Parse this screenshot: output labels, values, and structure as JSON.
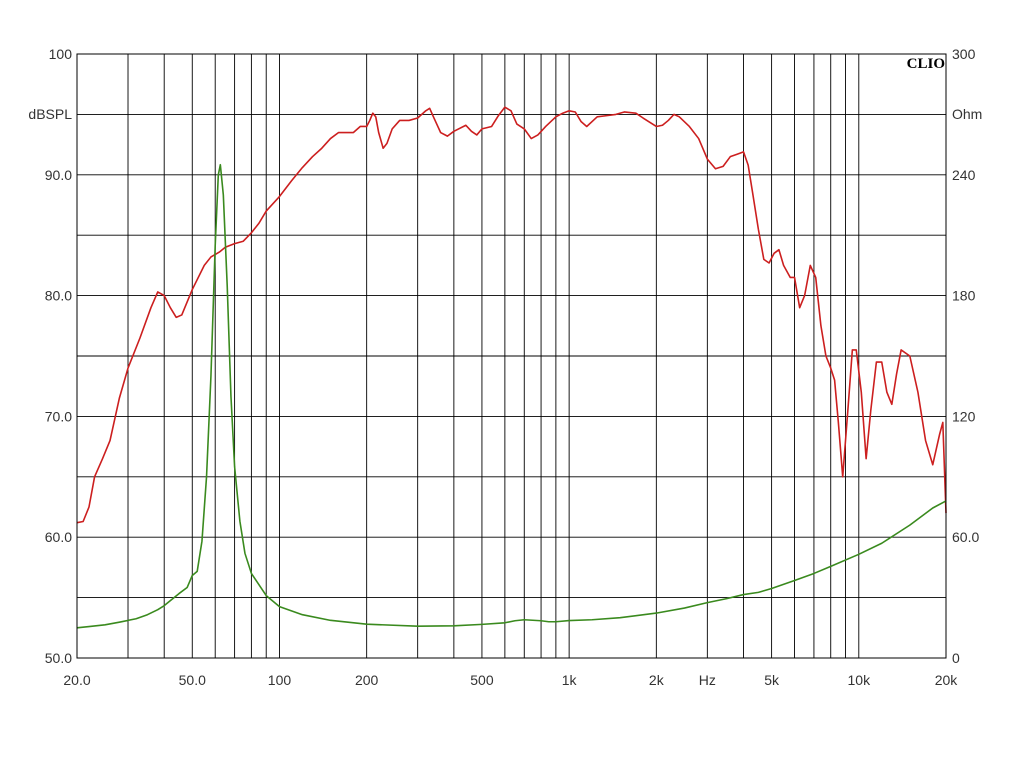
{
  "chart_data": {
    "type": "line",
    "title": "",
    "brand": "CLIO",
    "x_axis": {
      "scale": "log",
      "range": [
        20,
        20000
      ],
      "tick_labels": [
        {
          "value": 20,
          "label": "20.0"
        },
        {
          "value": 50,
          "label": "50.0"
        },
        {
          "value": 100,
          "label": "100"
        },
        {
          "value": 200,
          "label": "200"
        },
        {
          "value": 500,
          "label": "500"
        },
        {
          "value": 1000,
          "label": "1k"
        },
        {
          "value": 2000,
          "label": "2k"
        },
        {
          "value": 3000,
          "label": "Hz"
        },
        {
          "value": 5000,
          "label": "5k"
        },
        {
          "value": 10000,
          "label": "10k"
        },
        {
          "value": 20000,
          "label": "20k"
        }
      ]
    },
    "y_left": {
      "unit_label": "dBSPL",
      "range": [
        50,
        100
      ],
      "tick_labels": [
        {
          "value": 100,
          "label": "100"
        },
        {
          "value": 90,
          "label": "90.0"
        },
        {
          "value": 80,
          "label": "80.0"
        },
        {
          "value": 70,
          "label": "70.0"
        },
        {
          "value": 60,
          "label": "60.0"
        },
        {
          "value": 50,
          "label": "50.0"
        }
      ]
    },
    "y_right": {
      "unit_label": "Ohm",
      "range": [
        0,
        300
      ],
      "tick_labels": [
        {
          "value": 300,
          "label": "300"
        },
        {
          "value": 240,
          "label": "240"
        },
        {
          "value": 180,
          "label": "180"
        },
        {
          "value": 120,
          "label": "120"
        },
        {
          "value": 60,
          "label": "60.0"
        },
        {
          "value": 0,
          "label": "0"
        }
      ]
    },
    "grid": true,
    "series": [
      {
        "axis": "left",
        "color": "#cc1f1f",
        "points": [
          [
            20,
            61.2
          ],
          [
            21,
            61.3
          ],
          [
            22,
            62.5
          ],
          [
            23,
            65
          ],
          [
            24.5,
            66.5
          ],
          [
            26,
            68
          ],
          [
            28,
            71.5
          ],
          [
            30,
            74
          ],
          [
            33,
            76.5
          ],
          [
            36,
            79
          ],
          [
            38,
            80.3
          ],
          [
            40,
            80
          ],
          [
            42,
            79
          ],
          [
            44,
            78.2
          ],
          [
            46,
            78.4
          ],
          [
            50,
            80.5
          ],
          [
            55,
            82.5
          ],
          [
            58,
            83.2
          ],
          [
            62,
            83.6
          ],
          [
            65,
            84
          ],
          [
            70,
            84.3
          ],
          [
            75,
            84.5
          ],
          [
            80,
            85.2
          ],
          [
            85,
            86
          ],
          [
            90,
            87
          ],
          [
            100,
            88.2
          ],
          [
            110,
            89.5
          ],
          [
            120,
            90.6
          ],
          [
            130,
            91.5
          ],
          [
            140,
            92.2
          ],
          [
            150,
            93
          ],
          [
            160,
            93.5
          ],
          [
            180,
            93.5
          ],
          [
            190,
            94
          ],
          [
            200,
            94
          ],
          [
            205,
            94.5
          ],
          [
            210,
            95.1
          ],
          [
            215,
            94.8
          ],
          [
            220,
            93.5
          ],
          [
            228,
            92.2
          ],
          [
            235,
            92.6
          ],
          [
            245,
            93.8
          ],
          [
            260,
            94.5
          ],
          [
            280,
            94.5
          ],
          [
            300,
            94.7
          ],
          [
            320,
            95.3
          ],
          [
            330,
            95.5
          ],
          [
            340,
            94.8
          ],
          [
            360,
            93.5
          ],
          [
            380,
            93.2
          ],
          [
            400,
            93.6
          ],
          [
            440,
            94.1
          ],
          [
            460,
            93.6
          ],
          [
            480,
            93.3
          ],
          [
            500,
            93.8
          ],
          [
            540,
            94
          ],
          [
            570,
            94.9
          ],
          [
            600,
            95.6
          ],
          [
            630,
            95.3
          ],
          [
            660,
            94.2
          ],
          [
            700,
            93.8
          ],
          [
            740,
            93
          ],
          [
            780,
            93.3
          ],
          [
            830,
            94
          ],
          [
            900,
            94.8
          ],
          [
            950,
            95.1
          ],
          [
            1000,
            95.3
          ],
          [
            1050,
            95.2
          ],
          [
            1100,
            94.4
          ],
          [
            1150,
            94
          ],
          [
            1250,
            94.8
          ],
          [
            1350,
            94.9
          ],
          [
            1450,
            95
          ],
          [
            1550,
            95.2
          ],
          [
            1700,
            95.1
          ],
          [
            1800,
            94.7
          ],
          [
            2000,
            94
          ],
          [
            2100,
            94.1
          ],
          [
            2200,
            94.5
          ],
          [
            2300,
            95
          ],
          [
            2400,
            94.8
          ],
          [
            2600,
            94
          ],
          [
            2800,
            93
          ],
          [
            3000,
            91.3
          ],
          [
            3200,
            90.5
          ],
          [
            3400,
            90.7
          ],
          [
            3600,
            91.5
          ],
          [
            3800,
            91.7
          ],
          [
            4000,
            91.9
          ],
          [
            4150,
            90.8
          ],
          [
            4300,
            88.5
          ],
          [
            4500,
            85.5
          ],
          [
            4700,
            83
          ],
          [
            4900,
            82.7
          ],
          [
            5100,
            83.5
          ],
          [
            5300,
            83.8
          ],
          [
            5500,
            82.5
          ],
          [
            5800,
            81.5
          ],
          [
            6000,
            81.5
          ],
          [
            6250,
            79
          ],
          [
            6500,
            80
          ],
          [
            6800,
            82.5
          ],
          [
            7100,
            81.5
          ],
          [
            7400,
            77.5
          ],
          [
            7700,
            75
          ],
          [
            8000,
            74
          ],
          [
            8250,
            73
          ],
          [
            8500,
            69.5
          ],
          [
            8800,
            65
          ],
          [
            9200,
            71
          ],
          [
            9500,
            75.5
          ],
          [
            9800,
            75.5
          ],
          [
            10200,
            72
          ],
          [
            10600,
            66.5
          ],
          [
            11000,
            70.5
          ],
          [
            11500,
            74.5
          ],
          [
            12000,
            74.5
          ],
          [
            12500,
            72
          ],
          [
            13000,
            71
          ],
          [
            13500,
            73.5
          ],
          [
            14000,
            75.5
          ],
          [
            15000,
            75
          ],
          [
            16000,
            72
          ],
          [
            17000,
            68
          ],
          [
            18000,
            66
          ],
          [
            19000,
            68.5
          ],
          [
            19500,
            69.5
          ],
          [
            20000,
            62
          ]
        ]
      },
      {
        "axis": "right",
        "color": "#3a8a1e",
        "points": [
          [
            20,
            15
          ],
          [
            22,
            15.6
          ],
          [
            25,
            16.5
          ],
          [
            28,
            17.8
          ],
          [
            32,
            19.5
          ],
          [
            35,
            21.5
          ],
          [
            38,
            24
          ],
          [
            40,
            26
          ],
          [
            42,
            28.5
          ],
          [
            45,
            32
          ],
          [
            48,
            35
          ],
          [
            50,
            41
          ],
          [
            52,
            43
          ],
          [
            54,
            58
          ],
          [
            56,
            90
          ],
          [
            58,
            140
          ],
          [
            60,
            205
          ],
          [
            61.5,
            240
          ],
          [
            62.5,
            245
          ],
          [
            64,
            230
          ],
          [
            66,
            185
          ],
          [
            68,
            130
          ],
          [
            70,
            95
          ],
          [
            73,
            68
          ],
          [
            76,
            52
          ],
          [
            80,
            42
          ],
          [
            90,
            31
          ],
          [
            100,
            25.5
          ],
          [
            120,
            21.5
          ],
          [
            150,
            18.7
          ],
          [
            200,
            16.8
          ],
          [
            300,
            15.8
          ],
          [
            400,
            16
          ],
          [
            500,
            16.7
          ],
          [
            600,
            17.5
          ],
          [
            650,
            18.5
          ],
          [
            700,
            19
          ],
          [
            800,
            18.5
          ],
          [
            850,
            18
          ],
          [
            900,
            18
          ],
          [
            1000,
            18.6
          ],
          [
            1200,
            19
          ],
          [
            1500,
            20
          ],
          [
            2000,
            22.3
          ],
          [
            2500,
            24.8
          ],
          [
            3000,
            27.5
          ],
          [
            3500,
            29.5
          ],
          [
            4000,
            31.5
          ],
          [
            4500,
            32.6
          ],
          [
            5000,
            34.5
          ],
          [
            6000,
            38.5
          ],
          [
            7000,
            42
          ],
          [
            8000,
            45.5
          ],
          [
            10000,
            51.5
          ],
          [
            12000,
            57
          ],
          [
            15000,
            66
          ],
          [
            18000,
            74.5
          ],
          [
            20000,
            78
          ]
        ]
      }
    ]
  }
}
